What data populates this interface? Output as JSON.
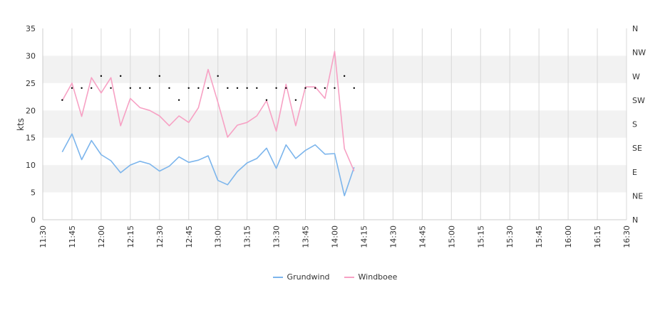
{
  "chart_data": {
    "type": "line",
    "ylabel": "kts",
    "ylim": [
      0,
      35
    ],
    "yticks": [
      0,
      5,
      10,
      15,
      20,
      25,
      30,
      35
    ],
    "right_axis_labels": [
      "N",
      "NE",
      "E",
      "SE",
      "S",
      "SW",
      "W",
      "NW",
      "N"
    ],
    "x_start": "11:30",
    "x_end": "16:30",
    "x_ticks": [
      "11:30",
      "11:45",
      "12:00",
      "12:15",
      "12:30",
      "12:45",
      "13:00",
      "13:15",
      "13:30",
      "13:45",
      "14:00",
      "14:15",
      "14:30",
      "14:45",
      "15:00",
      "15:15",
      "15:30",
      "15:45",
      "16:00",
      "16:15",
      "16:30"
    ],
    "x": [
      "11:40",
      "11:45",
      "11:50",
      "11:55",
      "12:00",
      "12:05",
      "12:10",
      "12:15",
      "12:20",
      "12:25",
      "12:30",
      "12:35",
      "12:40",
      "12:45",
      "12:50",
      "12:55",
      "13:00",
      "13:05",
      "13:10",
      "13:15",
      "13:20",
      "13:25",
      "13:30",
      "13:35",
      "13:40",
      "13:45",
      "13:50",
      "13:55",
      "14:00",
      "14:05",
      "14:10",
      "14:15",
      "14:20",
      "14:25",
      "14:30",
      "14:35",
      "14:40",
      "14:45",
      "14:50",
      "14:55",
      "15:00",
      "15:05",
      "15:10",
      "15:15",
      "15:20",
      "15:25",
      "15:30",
      "15:35",
      "15:40",
      "15:45",
      "15:50",
      "15:55",
      "16:00",
      "16:05",
      "16:10",
      "16:15",
      "16:20",
      "16:25",
      "16:30"
    ],
    "series": [
      {
        "name": "Grundwind",
        "color": "#7cb5ec",
        "points": [
          [
            "11:40",
            12.4
          ],
          [
            "11:45",
            15.7
          ],
          [
            "11:50",
            11.0
          ],
          [
            "11:55",
            14.5
          ],
          [
            "12:00",
            11.9
          ],
          [
            "12:05",
            10.8
          ],
          [
            "12:10",
            8.6
          ],
          [
            "12:15",
            10.0
          ],
          [
            "12:20",
            10.7
          ],
          [
            "12:25",
            10.2
          ],
          [
            "12:30",
            8.9
          ],
          [
            "12:35",
            9.8
          ],
          [
            "12:40",
            11.5
          ],
          [
            "12:45",
            10.5
          ],
          [
            "12:50",
            10.9
          ],
          [
            "12:55",
            11.7
          ],
          [
            "13:00",
            7.2
          ],
          [
            "13:05",
            6.4
          ],
          [
            "13:10",
            8.8
          ],
          [
            "13:15",
            10.4
          ],
          [
            "13:20",
            11.2
          ],
          [
            "13:25",
            13.1
          ],
          [
            "13:30",
            9.4
          ],
          [
            "13:35",
            13.7
          ],
          [
            "13:40",
            11.2
          ],
          [
            "13:45",
            12.7
          ],
          [
            "13:50",
            13.7
          ],
          [
            "13:55",
            12.0
          ],
          [
            "14:00",
            12.1
          ],
          [
            "14:05",
            4.4
          ],
          [
            "14:10",
            9.6
          ]
        ]
      },
      {
        "name": "Windboee",
        "color": "#f7a1c4",
        "points": [
          [
            "11:40",
            21.8
          ],
          [
            "11:45",
            25.0
          ],
          [
            "11:50",
            18.9
          ],
          [
            "11:55",
            26.0
          ],
          [
            "12:00",
            23.2
          ],
          [
            "12:05",
            26.0
          ],
          [
            "12:10",
            17.2
          ],
          [
            "12:15",
            22.2
          ],
          [
            "12:20",
            20.5
          ],
          [
            "12:25",
            20.0
          ],
          [
            "12:30",
            19.0
          ],
          [
            "12:35",
            17.2
          ],
          [
            "12:40",
            19.0
          ],
          [
            "12:45",
            17.8
          ],
          [
            "12:50",
            20.5
          ],
          [
            "12:55",
            27.5
          ],
          [
            "13:00",
            21.5
          ],
          [
            "13:05",
            15.1
          ],
          [
            "13:10",
            17.3
          ],
          [
            "13:15",
            17.8
          ],
          [
            "13:20",
            19.0
          ],
          [
            "13:25",
            21.8
          ],
          [
            "13:30",
            16.2
          ],
          [
            "13:35",
            24.8
          ],
          [
            "13:40",
            17.2
          ],
          [
            "13:45",
            24.3
          ],
          [
            "13:50",
            24.3
          ],
          [
            "13:55",
            22.2
          ],
          [
            "14:00",
            30.8
          ],
          [
            "14:05",
            13.0
          ],
          [
            "14:10",
            8.9
          ]
        ]
      }
    ],
    "direction_markers": [
      [
        "11:40",
        21.9
      ],
      [
        "11:45",
        24.1
      ],
      [
        "11:50",
        24.1
      ],
      [
        "11:55",
        24.1
      ],
      [
        "12:00",
        26.3
      ],
      [
        "12:05",
        24.1
      ],
      [
        "12:10",
        26.3
      ],
      [
        "12:15",
        24.1
      ],
      [
        "12:20",
        24.1
      ],
      [
        "12:25",
        24.1
      ],
      [
        "12:30",
        26.3
      ],
      [
        "12:35",
        24.1
      ],
      [
        "12:40",
        21.9
      ],
      [
        "12:45",
        24.1
      ],
      [
        "12:50",
        24.1
      ],
      [
        "12:55",
        24.1
      ],
      [
        "13:00",
        26.3
      ],
      [
        "13:05",
        24.1
      ],
      [
        "13:10",
        24.1
      ],
      [
        "13:15",
        24.1
      ],
      [
        "13:20",
        24.1
      ],
      [
        "13:25",
        21.9
      ],
      [
        "13:30",
        24.1
      ],
      [
        "13:35",
        24.1
      ],
      [
        "13:40",
        21.9
      ],
      [
        "13:45",
        24.1
      ],
      [
        "13:50",
        24.1
      ],
      [
        "13:55",
        24.1
      ],
      [
        "14:00",
        24.1
      ],
      [
        "14:05",
        26.3
      ],
      [
        "14:10",
        24.1
      ]
    ],
    "grid": true,
    "legend_position": "bottom-center"
  }
}
